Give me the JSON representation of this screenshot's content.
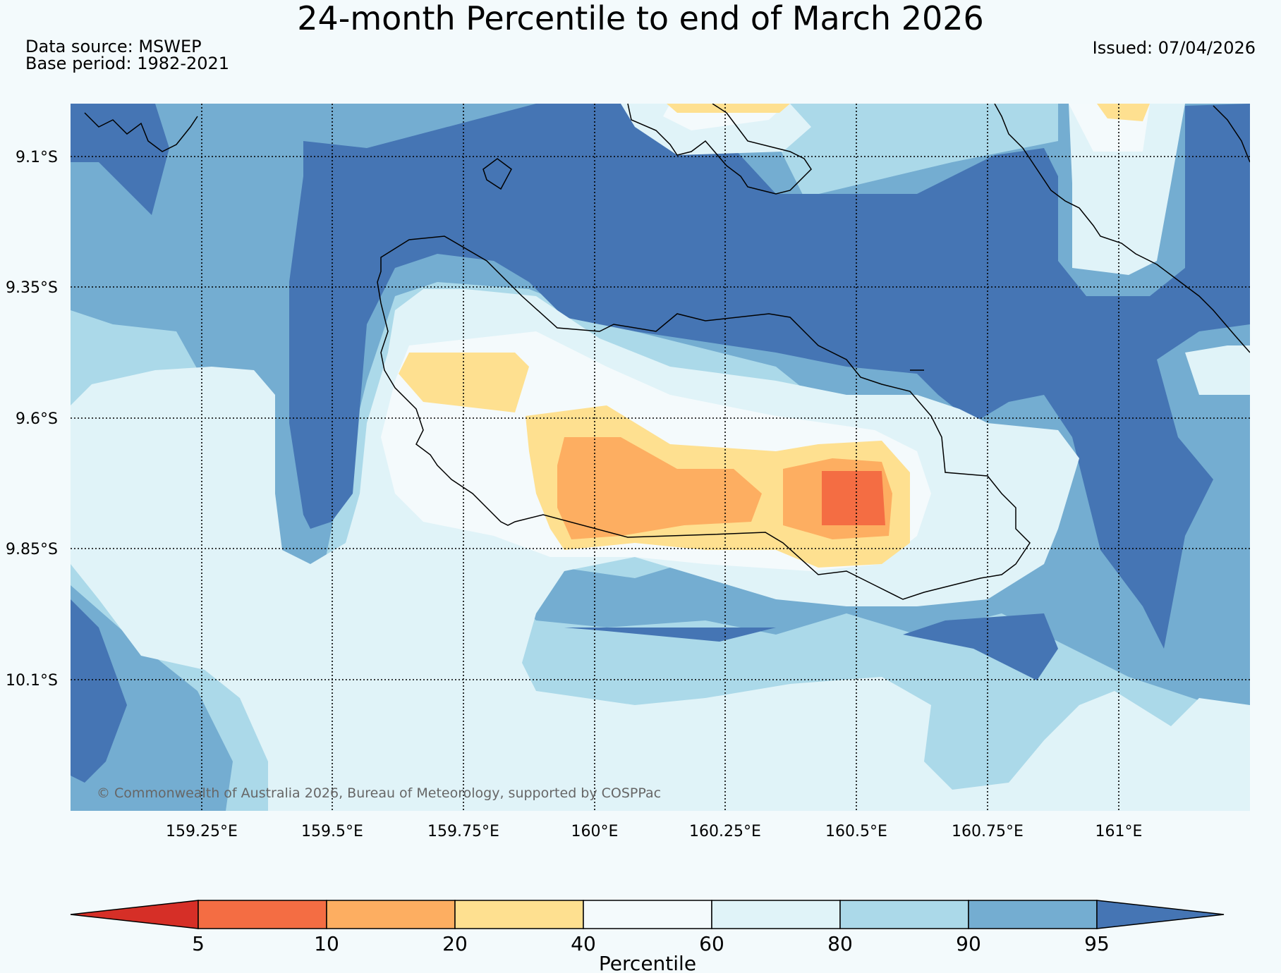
{
  "title": "24-month Percentile to end of March 2026",
  "data_source": "Data source: MSWEP",
  "base_period": "Base period: 1982-2021",
  "issued": "Issued: 07/04/2026",
  "copyright": "© Commonwealth of Australia 2026, Bureau of Meteorology, supported by COSPPac",
  "lat_labels": [
    "9.1°S",
    "9.35°S",
    "9.6°S",
    "9.85°S",
    "10.1°S"
  ],
  "lon_labels": [
    "159.25°E",
    "159.5°E",
    "159.75°E",
    "160°E",
    "160.25°E",
    "160.5°E",
    "160.75°E",
    "161°E"
  ],
  "colorbar": {
    "title": "Percentile",
    "ticks": [
      "5",
      "10",
      "20",
      "40",
      "60",
      "80",
      "90",
      "95"
    ],
    "colors": [
      "#d62f27",
      "#f46d43",
      "#fdae61",
      "#fee090",
      "#f4fafc",
      "#e0f3f8",
      "#abd9e9",
      "#74add1",
      "#4575b4"
    ]
  }
}
